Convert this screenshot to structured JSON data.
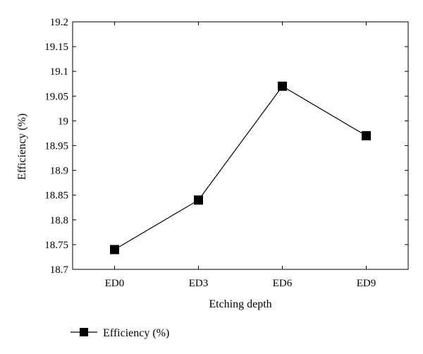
{
  "chart_data": {
    "type": "line",
    "categories": [
      "ED0",
      "ED3",
      "ED6",
      "ED9"
    ],
    "series": [
      {
        "name": "Efficiency (%)",
        "values": [
          18.74,
          18.84,
          19.07,
          18.97
        ]
      }
    ],
    "xlabel": "Etching depth",
    "ylabel": "Efficiency (%)",
    "ylim": [
      18.7,
      19.2
    ],
    "yticks": [
      "18.7",
      "18.75",
      "18.8",
      "18.85",
      "18.9",
      "18.95",
      "19",
      "19.05",
      "19.1",
      "19.15",
      "19.2"
    ],
    "grid": false,
    "legend_position": "bottom-left",
    "marker": "square",
    "colors": {
      "line": "#000000",
      "marker": "#000000"
    }
  }
}
